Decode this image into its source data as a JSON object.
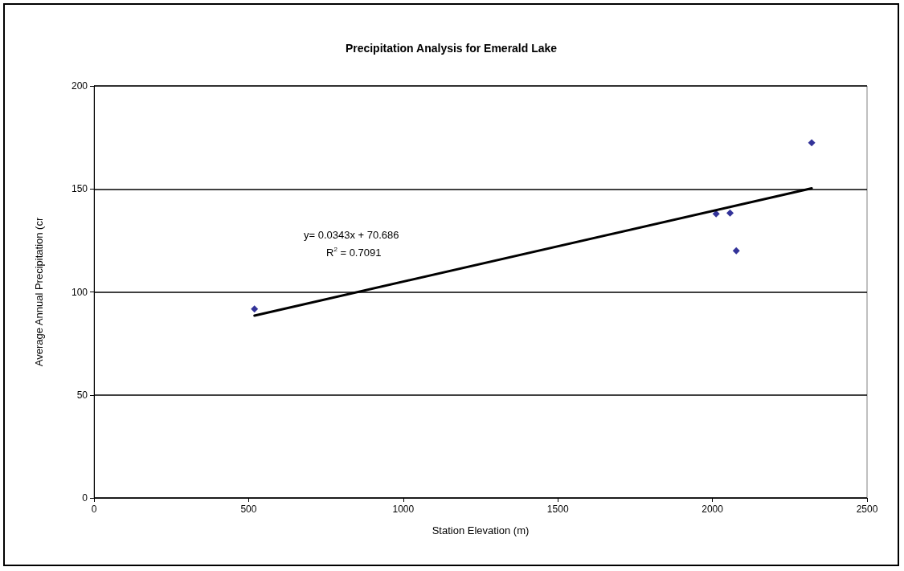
{
  "chart_data": {
    "type": "scatter",
    "title": "Precipitation Analysis for Emerald Lake",
    "xlabel": "Station Elevation (m)",
    "ylabel": "Average Annual Precipitation (cr",
    "series": [
      {
        "color": "#000080",
        "marker": "diamond",
        "x": [
          519,
          2012,
          2057,
          2077,
          2321
        ],
        "values": [
          91.7,
          137.9,
          138.3,
          120.0,
          172.4
        ]
      },
      {
        "type": "line",
        "color": "#000000",
        "marker": "none",
        "x": [
          519,
          2321
        ],
        "values": [
          88.5,
          150.3
        ]
      }
    ],
    "annotations": [
      "y= 0.0343x + 70.686",
      "R$^{2}$ = 0.7091"
    ],
    "xlim": [
      0,
      2500
    ],
    "xticks": [
      0,
      500,
      1000,
      1500,
      2000,
      2500
    ],
    "ylim": [
      0,
      200
    ],
    "yticks": [
      0,
      50,
      100,
      150,
      200
    ],
    "grid": "y"
  }
}
